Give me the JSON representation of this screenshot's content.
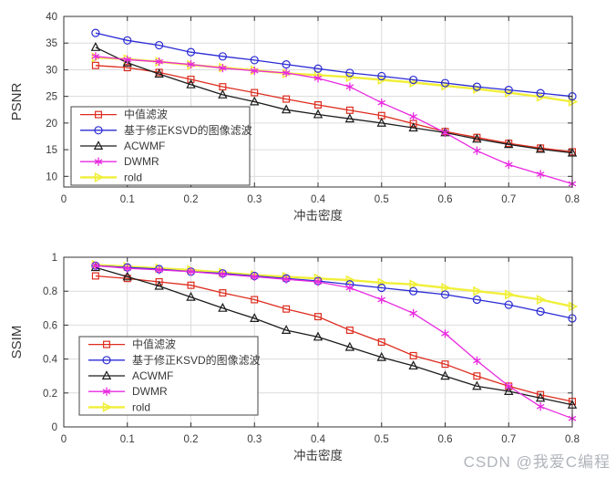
{
  "watermark": {
    "text": "CSDN @我爱C编程",
    "color": "#b0b4ba"
  },
  "chart_data": [
    {
      "name": "psnr",
      "type": "line",
      "title": "",
      "xlabel": "冲击密度",
      "ylabel": "PSNR",
      "grid": true,
      "legend_position": "bottom-left",
      "xlim": [
        0,
        0.8
      ],
      "ylim": [
        8,
        40
      ],
      "xticks": [
        "0",
        "0.1",
        "0.2",
        "0.3",
        "0.4",
        "0.5",
        "0.6",
        "0.7",
        "0.8"
      ],
      "yticks": [
        "10",
        "15",
        "20",
        "25",
        "30",
        "35",
        "40"
      ],
      "x": [
        0.05,
        0.1,
        0.15,
        0.2,
        0.25,
        0.3,
        0.35,
        0.4,
        0.45,
        0.5,
        0.55,
        0.6,
        0.65,
        0.7,
        0.75,
        0.8
      ],
      "series": [
        {
          "name": "中值滤波",
          "color": "#dd2c1e",
          "marker": "square",
          "values": [
            30.8,
            30.4,
            29.5,
            28.2,
            26.8,
            25.7,
            24.5,
            23.4,
            22.4,
            21.4,
            19.9,
            18.4,
            17.3,
            16.2,
            15.3,
            14.6
          ]
        },
        {
          "name": "基于修正KSVD的图像滤波",
          "color": "#2b2bd5",
          "marker": "circle",
          "values": [
            36.9,
            35.5,
            34.6,
            33.3,
            32.5,
            31.8,
            31.0,
            30.2,
            29.4,
            28.8,
            28.1,
            27.5,
            26.8,
            26.2,
            25.6,
            25.0
          ]
        },
        {
          "name": "ACWMF",
          "color": "#1c1c1c",
          "marker": "triangle-up",
          "values": [
            34.2,
            31.3,
            29.2,
            27.2,
            25.3,
            24.0,
            22.5,
            21.6,
            20.8,
            20.0,
            19.1,
            18.2,
            17.0,
            16.0,
            15.1,
            14.4
          ]
        },
        {
          "name": "DWMR",
          "color": "#e82ae0",
          "marker": "asterisk",
          "values": [
            32.5,
            31.9,
            31.5,
            31.0,
            30.3,
            29.8,
            29.4,
            28.4,
            26.8,
            23.8,
            21.2,
            18.2,
            14.8,
            12.2,
            10.4,
            8.6
          ]
        },
        {
          "name": "rold",
          "color": "#f0ef3a",
          "marker": "triangle-right",
          "values": [
            32.3,
            32.0,
            31.5,
            30.9,
            30.4,
            29.9,
            29.3,
            29.0,
            28.6,
            28.1,
            27.6,
            27.0,
            26.4,
            25.7,
            24.9,
            24.0
          ]
        }
      ]
    },
    {
      "name": "ssim",
      "type": "line",
      "title": "",
      "xlabel": "冲击密度",
      "ylabel": "SSIM",
      "grid": true,
      "legend_position": "bottom-left",
      "xlim": [
        0,
        0.8
      ],
      "ylim": [
        0,
        1
      ],
      "xticks": [
        "0",
        "0.1",
        "0.2",
        "0.3",
        "0.4",
        "0.5",
        "0.6",
        "0.7",
        "0.8"
      ],
      "yticks": [
        "0",
        "0.2",
        "0.4",
        "0.6",
        "0.8",
        "1"
      ],
      "x": [
        0.05,
        0.1,
        0.15,
        0.2,
        0.25,
        0.3,
        0.35,
        0.4,
        0.45,
        0.5,
        0.55,
        0.6,
        0.65,
        0.7,
        0.75,
        0.8
      ],
      "series": [
        {
          "name": "中值滤波",
          "color": "#dd2c1e",
          "marker": "square",
          "values": [
            0.89,
            0.875,
            0.855,
            0.835,
            0.79,
            0.75,
            0.695,
            0.65,
            0.57,
            0.5,
            0.42,
            0.37,
            0.3,
            0.24,
            0.19,
            0.15
          ]
        },
        {
          "name": "基于修正KSVD的图像滤波",
          "color": "#2b2bd5",
          "marker": "circle",
          "values": [
            0.95,
            0.94,
            0.93,
            0.915,
            0.905,
            0.89,
            0.875,
            0.86,
            0.84,
            0.82,
            0.8,
            0.78,
            0.75,
            0.72,
            0.68,
            0.64
          ]
        },
        {
          "name": "ACWMF",
          "color": "#1c1c1c",
          "marker": "triangle-up",
          "values": [
            0.94,
            0.885,
            0.83,
            0.765,
            0.7,
            0.64,
            0.57,
            0.53,
            0.47,
            0.41,
            0.36,
            0.3,
            0.24,
            0.21,
            0.17,
            0.13
          ]
        },
        {
          "name": "DWMR",
          "color": "#e82ae0",
          "marker": "asterisk",
          "values": [
            0.95,
            0.935,
            0.925,
            0.915,
            0.9,
            0.885,
            0.87,
            0.855,
            0.82,
            0.75,
            0.67,
            0.55,
            0.39,
            0.24,
            0.12,
            0.05
          ]
        },
        {
          "name": "rold",
          "color": "#f0ef3a",
          "marker": "triangle-right",
          "values": [
            0.955,
            0.945,
            0.935,
            0.925,
            0.91,
            0.895,
            0.885,
            0.875,
            0.865,
            0.85,
            0.84,
            0.82,
            0.8,
            0.78,
            0.75,
            0.71
          ]
        }
      ]
    }
  ]
}
